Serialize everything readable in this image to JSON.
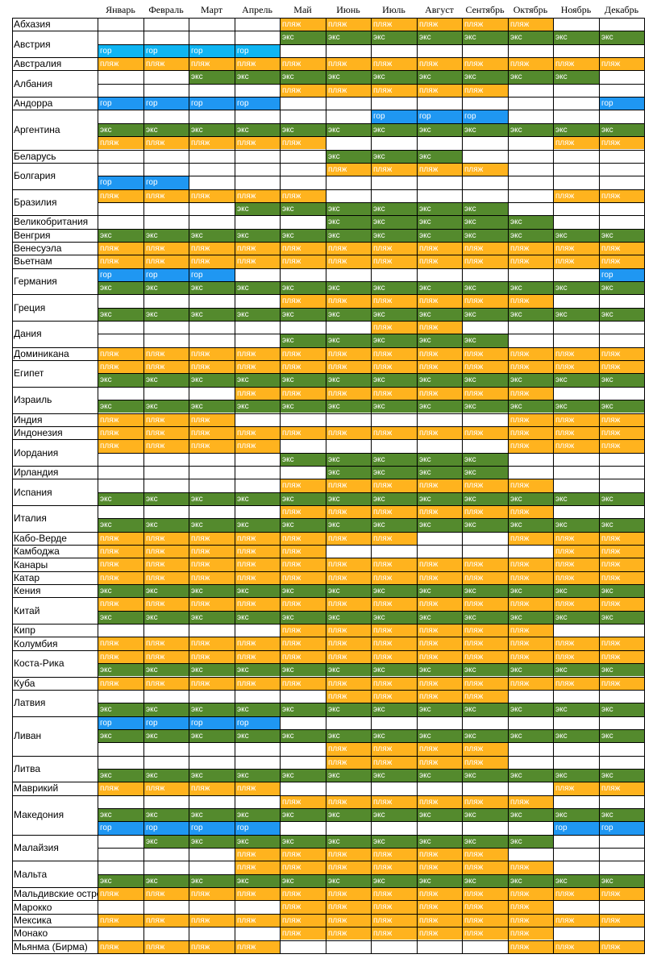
{
  "legend": {
    "p": "пляж",
    "e": "экс",
    "g": "гор"
  },
  "colors": {
    "beach": "#ffb31e",
    "excursion": "#548a2d",
    "mountain": "#1f97f2"
  },
  "months": [
    "Январь",
    "Февраль",
    "Март",
    "Апрель",
    "Май",
    "Июнь",
    "Июль",
    "Август",
    "Сентябрь",
    "Октябрь",
    "Ноябрь",
    "Декабрь"
  ],
  "countries": [
    {
      "name": "Абхазия",
      "rows": [
        "....pppppp.."
      ]
    },
    {
      "name": "Австрия",
      "rows": [
        "....eeeeeeee",
        "GGGG........"
      ]
    },
    {
      "name": "Австралия",
      "rows": [
        "pppppppppppp"
      ]
    },
    {
      "name": "Албания",
      "rows": [
        "..eeeeeeeee.",
        "....ppppp..."
      ]
    },
    {
      "name": "Андорра",
      "rows": [
        "gggg.......g"
      ]
    },
    {
      "name": "Аргентина",
      "rows": [
        "......ggg...",
        "eeeeeeeeeeee",
        "ppppp.....pp"
      ]
    },
    {
      "name": "Беларусь",
      "rows": [
        ".....eee...."
      ]
    },
    {
      "name": "Болгария",
      "rows": [
        ".....pppp...",
        "gg.........."
      ]
    },
    {
      "name": "Бразилия",
      "rows": [
        "ppppp.....pp",
        "...eeeeee..."
      ]
    },
    {
      "name": "Великобритания",
      "rows": [
        ".....eeeee.."
      ]
    },
    {
      "name": "Венгрия",
      "rows": [
        "eeeeeeeeeeee"
      ]
    },
    {
      "name": "Венесуэла",
      "rows": [
        "pppppppppppp"
      ]
    },
    {
      "name": "Вьетнам",
      "rows": [
        "pppppppppppp"
      ]
    },
    {
      "name": "Германия",
      "rows": [
        "ggg........g",
        "eeeeeeeeeeee"
      ]
    },
    {
      "name": "Греция",
      "rows": [
        "....pppppp..",
        "eeeeeeeeeeee"
      ]
    },
    {
      "name": "Дания",
      "rows": [
        "......pp....",
        "....eeeee..."
      ]
    },
    {
      "name": "Доминикана",
      "rows": [
        "pppppppppppp"
      ]
    },
    {
      "name": "Египет",
      "rows": [
        "pppppppppppp",
        "eeeeeeeeeeee"
      ]
    },
    {
      "name": "Израиль",
      "rows": [
        "...ppppppp..",
        "eeeeeeeeeeee"
      ]
    },
    {
      "name": "Индия",
      "rows": [
        "ppp......ppp"
      ]
    },
    {
      "name": "Индонезия",
      "rows": [
        "pppppppppppp"
      ]
    },
    {
      "name": "Иордания",
      "rows": [
        "pppp.....ppp",
        "....eeeee..."
      ]
    },
    {
      "name": "Ирландия",
      "rows": [
        ".....eeee..."
      ]
    },
    {
      "name": "Испания",
      "rows": [
        "....pppppp..",
        "eeeeeeeeeeee"
      ]
    },
    {
      "name": "Италия",
      "rows": [
        "....pppppp..",
        "eeeeeeeeeeee"
      ]
    },
    {
      "name": "Кабо-Верде",
      "rows": [
        "ppppppp..ppp"
      ]
    },
    {
      "name": "Камбоджа",
      "rows": [
        "ppppp.....pp"
      ]
    },
    {
      "name": "Канары",
      "rows": [
        "pppppppppppp"
      ]
    },
    {
      "name": "Катар",
      "rows": [
        "pppppppppppp"
      ]
    },
    {
      "name": "Кения",
      "rows": [
        "eeeeeeeeeeee"
      ]
    },
    {
      "name": "Китай",
      "rows": [
        "pppppppppppp",
        "eeeeeeeeeeee"
      ]
    },
    {
      "name": "Кипр",
      "rows": [
        "....pppppp.."
      ]
    },
    {
      "name": "Колумбия",
      "rows": [
        "pppppppppppp"
      ]
    },
    {
      "name": "Коста-Рика",
      "rows": [
        "pppppppppppp",
        "eeeeeeeeeeee"
      ]
    },
    {
      "name": "Куба",
      "rows": [
        "pppppppppppp"
      ]
    },
    {
      "name": "Латвия",
      "rows": [
        ".....pppp...",
        "eeeeeeeeeeee"
      ]
    },
    {
      "name": "Ливан",
      "rows": [
        "gggg........",
        "eeeeeeeeeeee",
        ".....pppp..."
      ]
    },
    {
      "name": "Литва",
      "rows": [
        ".....pppp...",
        "eeeeeeeeeeee"
      ]
    },
    {
      "name": "Маврикий",
      "rows": [
        "pppp......pp"
      ]
    },
    {
      "name": "Македония",
      "rows": [
        "....pppppp..",
        "eeeeeeeeeeee",
        "gggg......gg"
      ]
    },
    {
      "name": "Малайзия",
      "rows": [
        ".eeeeeeeee..",
        "...pppppp..."
      ]
    },
    {
      "name": "Мальта",
      "rows": [
        "...ppppppp..",
        "eeeeeeeeeeee"
      ]
    },
    {
      "name": "Мальдивские острова",
      "rows": [
        "pppppppppppp"
      ]
    },
    {
      "name": "Марокко",
      "rows": [
        "....pppppp.."
      ]
    },
    {
      "name": "Мексика",
      "rows": [
        "pppppppppppp"
      ]
    },
    {
      "name": "Монако",
      "rows": [
        "....pppppp.."
      ]
    },
    {
      "name": "Мьянма (Бирма)",
      "rows": [
        "pppp.....ppp"
      ]
    }
  ]
}
